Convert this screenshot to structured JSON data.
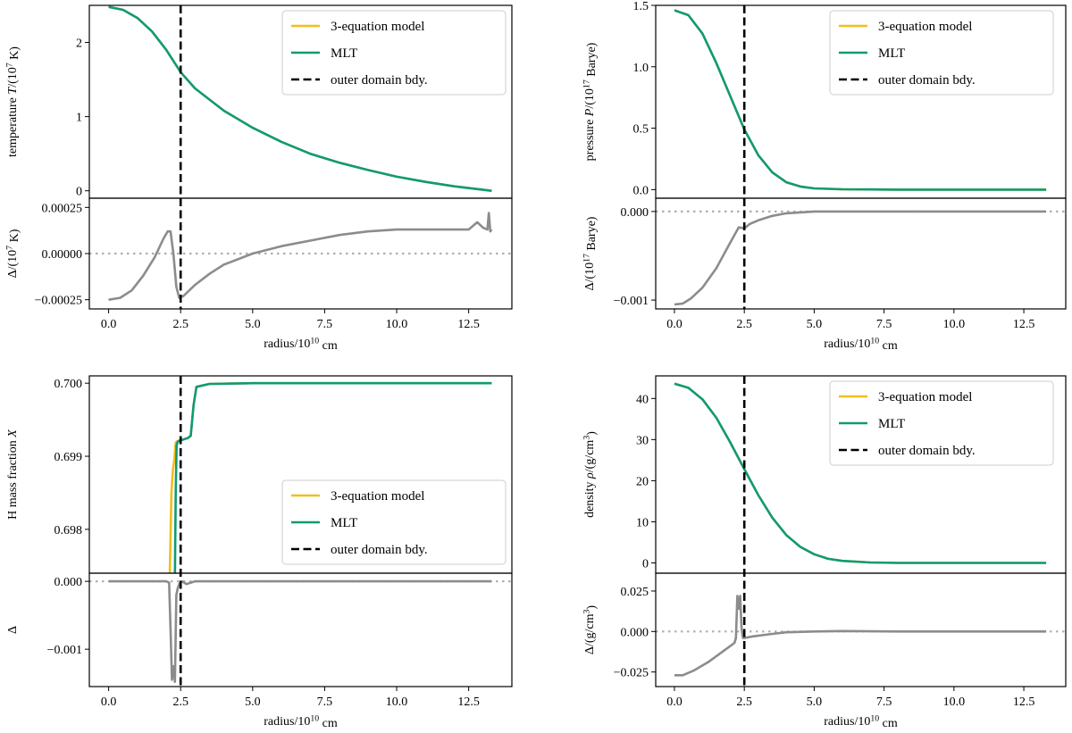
{
  "figure": {
    "colors": {
      "model": "#f2be1a",
      "mlt": "#0f9b74",
      "diff": "#8c8c8c",
      "zero": "#b0b0b0",
      "bdy": "#000000"
    },
    "legend_labels": [
      "3-equation model",
      "MLT",
      "outer domain bdy."
    ]
  },
  "chart_data": [
    {
      "type": "line",
      "title": "",
      "xlabel": "radius/10^10 cm",
      "xlim": [
        -0.67,
        14.0
      ],
      "xticks": [
        0.0,
        2.5,
        5.0,
        7.5,
        10.0,
        12.5
      ],
      "xtick_labels": [
        "0.0",
        "2.5",
        "5.0",
        "7.5",
        "10.0",
        "12.5"
      ],
      "boundary_x": 2.5,
      "legend": "top-right",
      "main": {
        "ylabel": "temperature T/(10^7 K)",
        "ylim": [
          -0.1,
          2.5
        ],
        "yticks": [
          0,
          1,
          2
        ],
        "ytick_labels": [
          "0",
          "1",
          "2"
        ],
        "series": [
          {
            "name": "3-equation model",
            "x": [
              0,
              0.5,
              1,
              1.5,
              2,
              2.5,
              3,
              4,
              5,
              6,
              7,
              8,
              9,
              10,
              11,
              12,
              13.3
            ],
            "y": [
              2.48,
              2.44,
              2.33,
              2.15,
              1.9,
              1.6,
              1.38,
              1.08,
              0.85,
              0.66,
              0.5,
              0.38,
              0.28,
              0.19,
              0.12,
              0.06,
              0.0
            ]
          },
          {
            "name": "MLT",
            "x": [
              0,
              0.5,
              1,
              1.5,
              2,
              2.5,
              3,
              4,
              5,
              6,
              7,
              8,
              9,
              10,
              11,
              12,
              13.3
            ],
            "y": [
              2.48,
              2.44,
              2.33,
              2.15,
              1.9,
              1.6,
              1.38,
              1.08,
              0.85,
              0.66,
              0.5,
              0.38,
              0.28,
              0.19,
              0.12,
              0.06,
              0.0
            ]
          }
        ]
      },
      "residual": {
        "ylabel": "Δ/(10^7 K)",
        "ylim": [
          -0.0003,
          0.0003
        ],
        "yticks": [
          -0.00025,
          0.0,
          0.00025
        ],
        "ytick_labels": [
          "−0.00025",
          "0.00000",
          "0.00025"
        ],
        "series": [
          {
            "name": "Δ",
            "x": [
              0,
              0.4,
              0.8,
              1.2,
              1.6,
              1.9,
              2.05,
              2.15,
              2.25,
              2.35,
              2.45,
              2.6,
              3,
              3.5,
              4,
              5,
              6,
              7,
              8,
              9,
              10,
              11,
              12,
              12.5,
              12.8,
              13.0,
              13.15,
              13.2,
              13.25,
              13.3
            ],
            "y": [
              -0.00025,
              -0.00024,
              -0.0002,
              -0.00012,
              -2e-05,
              8e-05,
              0.00012,
              0.00012,
              0.0,
              -0.00018,
              -0.00024,
              -0.00023,
              -0.00017,
              -0.00011,
              -6e-05,
              0.0,
              4e-05,
              7e-05,
              0.0001,
              0.00012,
              0.00013,
              0.00013,
              0.00013,
              0.00013,
              0.00017,
              0.00014,
              0.00013,
              0.00022,
              0.00012,
              0.00013
            ]
          }
        ]
      }
    },
    {
      "type": "line",
      "title": "",
      "xlabel": "radius/10^10 cm",
      "xlim": [
        -0.67,
        14.0
      ],
      "xticks": [
        0.0,
        2.5,
        5.0,
        7.5,
        10.0,
        12.5
      ],
      "xtick_labels": [
        "0.0",
        "2.5",
        "5.0",
        "7.5",
        "10.0",
        "12.5"
      ],
      "boundary_x": 2.5,
      "legend": "top-right",
      "main": {
        "ylabel": "pressure P/(10^17 Barye)",
        "ylim": [
          -0.07,
          1.5
        ],
        "yticks": [
          0.0,
          0.5,
          1.0,
          1.5
        ],
        "ytick_labels": [
          "0.0",
          "0.5",
          "1.0",
          "1.5"
        ],
        "series": [
          {
            "name": "3-equation model",
            "x": [
              0,
              0.5,
              1,
              1.5,
              2,
              2.5,
              3,
              3.5,
              4,
              4.5,
              5,
              6,
              7,
              8,
              10,
              12,
              13.3
            ],
            "y": [
              1.46,
              1.42,
              1.27,
              1.03,
              0.76,
              0.49,
              0.28,
              0.14,
              0.06,
              0.025,
              0.01,
              0.003,
              0.001,
              0.0,
              0.0,
              0.0,
              0.0
            ]
          },
          {
            "name": "MLT",
            "x": [
              0,
              0.5,
              1,
              1.5,
              2,
              2.5,
              3,
              3.5,
              4,
              4.5,
              5,
              6,
              7,
              8,
              10,
              12,
              13.3
            ],
            "y": [
              1.46,
              1.42,
              1.27,
              1.03,
              0.76,
              0.49,
              0.28,
              0.14,
              0.06,
              0.025,
              0.01,
              0.003,
              0.001,
              0.0,
              0.0,
              0.0,
              0.0
            ]
          }
        ]
      },
      "residual": {
        "ylabel": "Δ/(10^17 Barye)",
        "ylim": [
          -0.0011,
          0.00015
        ],
        "yticks": [
          -0.001,
          0.0
        ],
        "ytick_labels": [
          "−0.001",
          "0.000"
        ],
        "series": [
          {
            "name": "Δ",
            "x": [
              0,
              0.3,
              0.6,
              1,
              1.5,
              2,
              2.3,
              2.5,
              2.7,
              3,
              3.5,
              4,
              4.5,
              5,
              6,
              8,
              10,
              12,
              13.3
            ],
            "y": [
              -0.00105,
              -0.00104,
              -0.00098,
              -0.00086,
              -0.00064,
              -0.00035,
              -0.00018,
              -0.00019,
              -0.00014,
              -0.0001,
              -5e-05,
              -2e-05,
              -1e-05,
              0.0,
              0.0,
              0.0,
              0.0,
              0.0,
              0.0
            ]
          }
        ]
      }
    },
    {
      "type": "line",
      "title": "",
      "xlabel": "radius/10^10 cm",
      "xlim": [
        -0.67,
        14.0
      ],
      "xticks": [
        0.0,
        2.5,
        5.0,
        7.5,
        10.0,
        12.5
      ],
      "xtick_labels": [
        "0.0",
        "2.5",
        "5.0",
        "7.5",
        "10.0",
        "12.5"
      ],
      "boundary_x": 2.5,
      "legend": "lower-right",
      "main": {
        "ylabel": "H mass fraction X",
        "ylim": [
          0.6974,
          0.7001
        ],
        "yticks": [
          0.698,
          0.699,
          0.7
        ],
        "ytick_labels": [
          "0.698",
          "0.699",
          "0.700"
        ],
        "series": [
          {
            "name": "3-equation model",
            "x": [
              0,
              2.0,
              2.12,
              2.18,
              2.23,
              2.28,
              2.33,
              2.4,
              2.5,
              2.6,
              2.75,
              2.85,
              2.95,
              3.05,
              3.5,
              5,
              13.3
            ],
            "y": [
              0.69735,
              0.69735,
              0.69736,
              0.6985,
              0.69881,
              0.69895,
              0.69919,
              0.69921,
              0.69922,
              0.69923,
              0.69925,
              0.69928,
              0.6997,
              0.69995,
              0.69999,
              0.7,
              0.7
            ]
          },
          {
            "name": "MLT",
            "x": [
              0,
              2.3,
              2.33,
              2.36,
              2.4,
              2.5,
              2.6,
              2.75,
              2.85,
              2.95,
              3.05,
              3.5,
              5,
              13.3
            ],
            "y": [
              0.69735,
              0.69735,
              0.6985,
              0.69915,
              0.6992,
              0.69922,
              0.69923,
              0.69925,
              0.69928,
              0.6997,
              0.69995,
              0.69999,
              0.7,
              0.7
            ]
          }
        ]
      },
      "residual": {
        "ylabel": "Δ",
        "ylim": [
          -0.00155,
          0.00012
        ],
        "yticks": [
          -0.001,
          0.0
        ],
        "ytick_labels": [
          "−0.001",
          "0.000"
        ],
        "series": [
          {
            "name": "Δ",
            "x": [
              0,
              1.5,
              2.0,
              2.1,
              2.15,
              2.2,
              2.25,
              2.3,
              2.35,
              2.4,
              2.45,
              2.55,
              2.7,
              3,
              5,
              13.3
            ],
            "y": [
              0.0,
              0.0,
              0.0,
              -2e-05,
              -0.0007,
              -0.00145,
              -0.00125,
              -0.00148,
              -0.0002,
              -0.0001,
              -4e-05,
              0.0,
              -4e-05,
              0.0,
              0.0,
              0.0
            ]
          }
        ]
      }
    },
    {
      "type": "line",
      "title": "",
      "xlabel": "radius/10^10 cm",
      "xlim": [
        -0.67,
        14.0
      ],
      "xticks": [
        0.0,
        2.5,
        5.0,
        7.5,
        10.0,
        12.5
      ],
      "xtick_labels": [
        "0.0",
        "2.5",
        "5.0",
        "7.5",
        "10.0",
        "12.5"
      ],
      "boundary_x": 2.5,
      "legend": "top-right",
      "main": {
        "ylabel": "density ρ/(g/cm^3)",
        "ylim": [
          -2.5,
          45.5
        ],
        "yticks": [
          0,
          10,
          20,
          30,
          40
        ],
        "ytick_labels": [
          "0",
          "10",
          "20",
          "30",
          "40"
        ],
        "series": [
          {
            "name": "3-equation model",
            "x": [
              0,
              0.5,
              1,
              1.5,
              2,
              2.5,
              3,
              3.5,
              4,
              4.5,
              5,
              5.5,
              6,
              7,
              8,
              10,
              12,
              13.3
            ],
            "y": [
              43.6,
              42.6,
              39.8,
              35.3,
              29.3,
              22.8,
              16.5,
              11.0,
              6.8,
              3.9,
              2.1,
              1.0,
              0.5,
              0.1,
              0.0,
              0.0,
              0.0,
              0.0
            ]
          },
          {
            "name": "MLT",
            "x": [
              0,
              0.5,
              1,
              1.5,
              2,
              2.5,
              3,
              3.5,
              4,
              4.5,
              5,
              5.5,
              6,
              7,
              8,
              10,
              12,
              13.3
            ],
            "y": [
              43.6,
              42.6,
              39.8,
              35.3,
              29.3,
              22.8,
              16.5,
              11.0,
              6.8,
              3.9,
              2.1,
              1.0,
              0.5,
              0.1,
              0.0,
              0.0,
              0.0,
              0.0
            ]
          }
        ]
      },
      "residual": {
        "ylabel": "Δ/(g/cm^3)",
        "ylim": [
          -0.034,
          0.036
        ],
        "yticks": [
          -0.025,
          0.0,
          0.025
        ],
        "ytick_labels": [
          "−0.025",
          "0.000",
          "0.025"
        ],
        "series": [
          {
            "name": "Δ",
            "x": [
              0,
              0.3,
              0.7,
              1.2,
              1.6,
              2.0,
              2.15,
              2.2,
              2.25,
              2.3,
              2.35,
              2.4,
              2.45,
              2.5,
              2.8,
              3.5,
              4,
              5,
              6,
              8,
              10,
              12,
              13.3
            ],
            "y": [
              -0.027,
              -0.027,
              -0.024,
              -0.019,
              -0.014,
              -0.009,
              -0.007,
              -0.004,
              0.022,
              0.014,
              0.022,
              0.002,
              -0.004,
              -0.004,
              -0.003,
              -0.0015,
              -0.0005,
              0.0,
              0.0003,
              0.0,
              0.0,
              0.0,
              0.0
            ]
          }
        ]
      }
    }
  ]
}
